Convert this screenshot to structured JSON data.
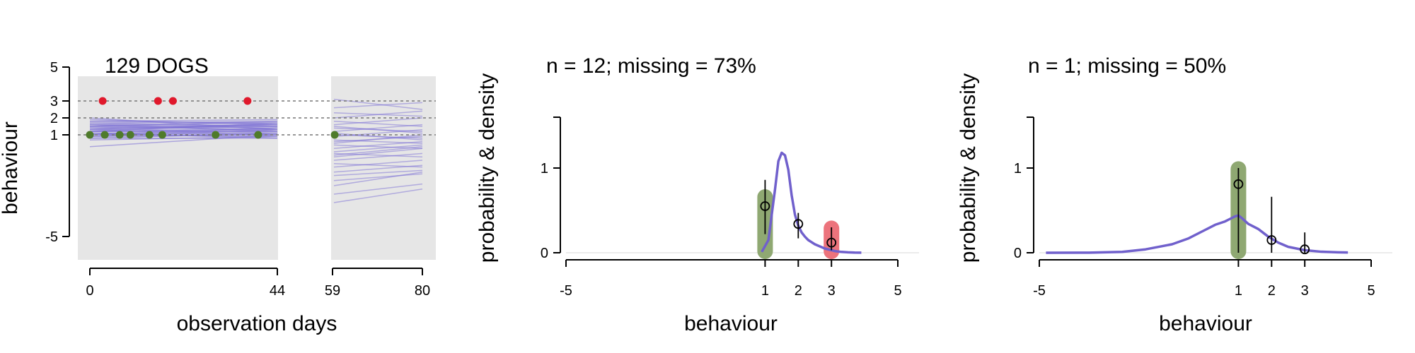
{
  "chart_data": [
    {
      "type": "line",
      "title": "129 DOGS",
      "xlabel": "observation days",
      "ylabel": "behaviour",
      "x_ticks": [
        "0",
        "44",
        "59",
        "80"
      ],
      "y_ticks": [
        "5",
        "3",
        "2",
        "1",
        "-5"
      ],
      "ylim": [
        -5,
        5
      ],
      "x_segments": [
        [
          0,
          44
        ],
        [
          59,
          80
        ]
      ],
      "reference_lines_y": [
        3,
        2,
        1
      ],
      "panel_color": "#e6e6e6",
      "colors": {
        "traces": "#7b6fd6",
        "observed_3": "#e0192c",
        "observed_1": "#4f7b2b"
      },
      "observations": [
        {
          "x": 3,
          "y": 3,
          "category": "3"
        },
        {
          "x": 16,
          "y": 3,
          "category": "3"
        },
        {
          "x": 19.5,
          "y": 3,
          "category": "3"
        },
        {
          "x": 37,
          "y": 3,
          "category": "3"
        },
        {
          "x": 0,
          "y": 1,
          "category": "1"
        },
        {
          "x": 3.5,
          "y": 1,
          "category": "1"
        },
        {
          "x": 7,
          "y": 1,
          "category": "1"
        },
        {
          "x": 9.5,
          "y": 1,
          "category": "1"
        },
        {
          "x": 14,
          "y": 1,
          "category": "1"
        },
        {
          "x": 17,
          "y": 1,
          "category": "1"
        },
        {
          "x": 29.5,
          "y": 1,
          "category": "1"
        },
        {
          "x": 39.5,
          "y": 1,
          "category": "1"
        },
        {
          "x": 59.5,
          "y": 1,
          "category": "1"
        }
      ],
      "traces_segment1": [
        [
          1.2,
          1.3
        ],
        [
          0.9,
          1.0
        ],
        [
          1.4,
          1.5
        ],
        [
          1.6,
          1.4
        ],
        [
          1.1,
          1.2
        ],
        [
          1.8,
          1.7
        ],
        [
          0.8,
          1.1
        ],
        [
          1.3,
          1.0
        ],
        [
          1.5,
          1.6
        ],
        [
          1.0,
          0.9
        ],
        [
          1.7,
          1.8
        ],
        [
          1.2,
          1.4
        ],
        [
          0.9,
          1.3
        ],
        [
          1.4,
          1.1
        ],
        [
          1.6,
          1.7
        ],
        [
          1.1,
          0.8
        ],
        [
          1.3,
          1.6
        ],
        [
          1.9,
          1.6
        ],
        [
          0.7,
          0.9
        ],
        [
          1.5,
          1.3
        ],
        [
          1.2,
          1.2
        ],
        [
          1.0,
          1.4
        ],
        [
          1.8,
          1.9
        ],
        [
          1.4,
          1.6
        ],
        [
          1.1,
          1.0
        ],
        [
          1.6,
          1.2
        ],
        [
          1.3,
          1.5
        ],
        [
          0.8,
          0.8
        ],
        [
          1.7,
          1.5
        ],
        [
          1.5,
          1.8
        ],
        [
          1.0,
          1.1
        ],
        [
          1.2,
          1.7
        ],
        [
          2.0,
          1.3
        ],
        [
          0.3,
          1.0
        ]
      ],
      "traces_segment2": [
        [
          3.1,
          2.5
        ],
        [
          2.6,
          2.9
        ],
        [
          2.3,
          2.1
        ],
        [
          2.0,
          2.4
        ],
        [
          1.8,
          1.5
        ],
        [
          1.6,
          2.0
        ],
        [
          1.4,
          1.2
        ],
        [
          1.2,
          1.6
        ],
        [
          1.0,
          0.8
        ],
        [
          0.9,
          1.3
        ],
        [
          0.7,
          0.5
        ],
        [
          0.5,
          1.0
        ],
        [
          0.4,
          0.2
        ],
        [
          0.2,
          0.6
        ],
        [
          0.0,
          0.4
        ],
        [
          -0.1,
          -0.3
        ],
        [
          -0.3,
          0.2
        ],
        [
          -0.5,
          -0.1
        ],
        [
          -0.7,
          -0.9
        ],
        [
          -0.9,
          -0.5
        ],
        [
          -1.2,
          -0.8
        ],
        [
          -1.4,
          -1.1
        ],
        [
          -1.7,
          -1.3
        ],
        [
          -2.0,
          -1.2
        ],
        [
          -2.5,
          -1.9
        ],
        [
          -3.0,
          -2.2
        ],
        [
          1.1,
          0.7
        ],
        [
          0.6,
          0.9
        ],
        [
          1.5,
          1.1
        ],
        [
          -0.2,
          0.3
        ]
      ]
    },
    {
      "type": "line",
      "title": "n = 12; missing = 73%",
      "xlabel": "behaviour",
      "ylabel": "probability & density",
      "x_ticks": [
        "-5",
        "1",
        "2",
        "3",
        "5"
      ],
      "y_ticks": [
        "0",
        "1"
      ],
      "xlim": [
        -5,
        5
      ],
      "ylim": [
        0,
        1.6
      ],
      "density": {
        "color": "#7060cc",
        "x": [
          0.9,
          1.1,
          1.3,
          1.4,
          1.5,
          1.6,
          1.7,
          1.8,
          1.9,
          2.0,
          2.1,
          2.2,
          2.3,
          2.5,
          2.8,
          3.1,
          3.3,
          3.5,
          3.7,
          3.9
        ],
        "y": [
          0.01,
          0.15,
          0.75,
          1.08,
          1.18,
          1.15,
          0.98,
          0.68,
          0.45,
          0.32,
          0.24,
          0.19,
          0.15,
          0.1,
          0.05,
          0.02,
          0.01,
          0.005,
          0.002,
          0.001
        ]
      },
      "category_bars": [
        {
          "x": 1,
          "height": 0.75,
          "color": "#8fa872"
        },
        {
          "x": 3,
          "height": 0.38,
          "color": "#ec737c"
        }
      ],
      "point_estimates": [
        {
          "x": 1,
          "y": 0.55,
          "lo": 0.22,
          "hi": 0.86
        },
        {
          "x": 2,
          "y": 0.34,
          "lo": 0.17,
          "hi": 0.47
        },
        {
          "x": 3,
          "y": 0.12,
          "lo": 0.03,
          "hi": 0.3
        }
      ]
    },
    {
      "type": "line",
      "title": "n = 1; missing = 50%",
      "xlabel": "behaviour",
      "ylabel": "probability & density",
      "x_ticks": [
        "-5",
        "1",
        "2",
        "3",
        "5"
      ],
      "y_ticks": [
        "0",
        "1"
      ],
      "xlim": [
        -5,
        5
      ],
      "ylim": [
        0,
        1.6
      ],
      "density": {
        "color": "#7060cc",
        "x": [
          -4.8,
          -3.5,
          -2.5,
          -1.8,
          -1.0,
          -0.5,
          -0.1,
          0.3,
          0.6,
          0.75,
          0.9,
          1.0,
          1.1,
          1.3,
          1.6,
          1.9,
          2.2,
          2.5,
          3.0,
          3.5,
          4.0,
          4.3
        ],
        "y": [
          0.0,
          0.001,
          0.01,
          0.04,
          0.1,
          0.17,
          0.25,
          0.33,
          0.37,
          0.4,
          0.43,
          0.44,
          0.41,
          0.34,
          0.28,
          0.19,
          0.12,
          0.07,
          0.03,
          0.012,
          0.005,
          0.003
        ]
      },
      "category_bars": [
        {
          "x": 1,
          "height": 1.08,
          "color": "#8fa872"
        }
      ],
      "point_estimates": [
        {
          "x": 1,
          "y": 0.81,
          "lo": 0.0,
          "hi": 1.0
        },
        {
          "x": 2,
          "y": 0.15,
          "lo": 0.0,
          "hi": 0.66
        },
        {
          "x": 3,
          "y": 0.04,
          "lo": 0.0,
          "hi": 0.24
        }
      ]
    }
  ]
}
